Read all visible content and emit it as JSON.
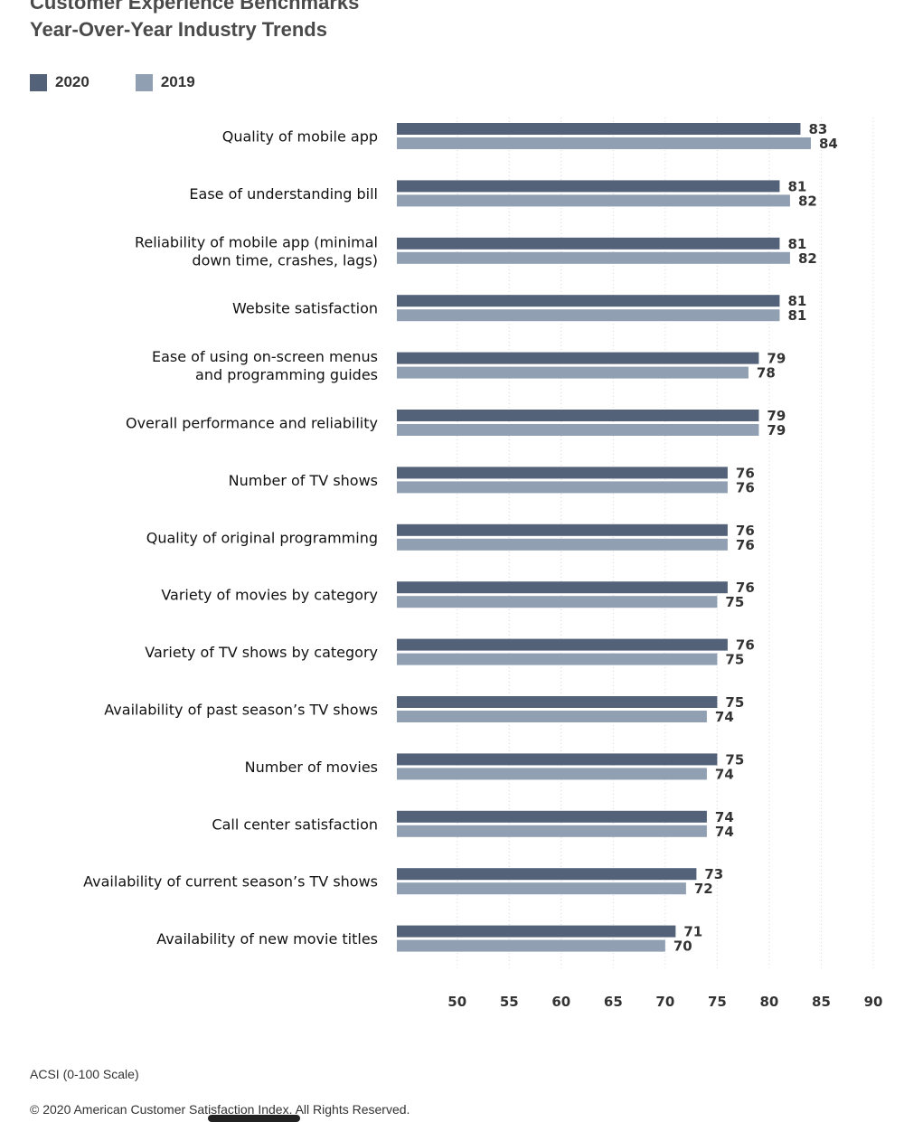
{
  "header": {
    "title_line1": "Customer Experience Benchmarks",
    "title_line2": "Year-Over-Year Industry Trends"
  },
  "legend": [
    {
      "label": "2020",
      "color": "#536279"
    },
    {
      "label": "2019",
      "color": "#909fb1"
    }
  ],
  "chart_data": {
    "type": "bar",
    "orientation": "horizontal",
    "categories": [
      [
        "Quality of mobile app"
      ],
      [
        "Ease of understanding bill"
      ],
      [
        "Reliability of mobile app (minimal",
        "down time, crashes, lags)"
      ],
      [
        "Website satisfaction"
      ],
      [
        "Ease of using on-screen menus",
        "and programming guides"
      ],
      [
        "Overall performance and reliability"
      ],
      [
        "Number of TV shows"
      ],
      [
        "Quality of original programming"
      ],
      [
        "Variety of movies by category"
      ],
      [
        "Variety of TV shows by category"
      ],
      [
        "Availability of past season’s TV shows"
      ],
      [
        "Number of movies"
      ],
      [
        "Call center satisfaction"
      ],
      [
        "Availability of current season’s TV shows"
      ],
      [
        "Availability of new movie titles"
      ]
    ],
    "series": [
      {
        "name": "2020",
        "color": "#536279",
        "values": [
          83,
          81,
          81,
          81,
          79,
          79,
          76,
          76,
          76,
          76,
          75,
          75,
          74,
          73,
          71
        ]
      },
      {
        "name": "2019",
        "color": "#909fb1",
        "values": [
          84,
          82,
          82,
          81,
          78,
          79,
          76,
          76,
          75,
          75,
          74,
          74,
          74,
          72,
          70
        ]
      }
    ],
    "xlim": [
      44.2,
      90
    ],
    "xticks": [
      50,
      55,
      60,
      65,
      70,
      75,
      80,
      85,
      90
    ],
    "grid": "vertical dotted"
  },
  "footer": {
    "scale_note": "ACSI (0-100 Scale)",
    "copyright": "© 2020 American Customer Satisfaction Index. All Rights Reserved."
  }
}
